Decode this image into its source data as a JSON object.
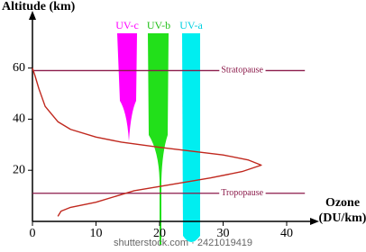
{
  "chart_data": {
    "type": "line",
    "y_label": "Altitude (km)",
    "x_label": [
      "Ozone",
      "(DU/km)"
    ],
    "xlim": [
      0,
      44
    ],
    "ylim": [
      0,
      80
    ],
    "xticks": [
      0,
      10,
      20,
      30,
      40
    ],
    "yticks": [
      20,
      40,
      60
    ],
    "x": [
      4,
      4.5,
      6,
      10,
      16,
      22,
      28,
      33,
      36,
      34,
      30,
      25,
      20,
      14,
      10,
      6,
      4,
      2,
      1,
      0.4,
      0
    ],
    "series": [
      {
        "color": "#c0281e",
        "values": [
          2,
          4,
          5.5,
          7.5,
          12,
          14.5,
          17,
          19.5,
          22,
          24,
          26,
          27.5,
          29,
          31,
          33,
          36,
          39,
          45,
          52,
          57,
          60
        ]
      }
    ],
    "annotations": [
      {
        "text": "Stratopause",
        "y": 59
      },
      {
        "text": "Tropopause",
        "y": 11
      }
    ],
    "bands": [
      {
        "label": "UV-c",
        "color": "#ff00ff"
      },
      {
        "label": "UV-b",
        "color": "#22e01a"
      },
      {
        "label": "UV-a",
        "color": "#00eef0"
      }
    ],
    "watermark": "shutterstock.com · 2421019419"
  }
}
